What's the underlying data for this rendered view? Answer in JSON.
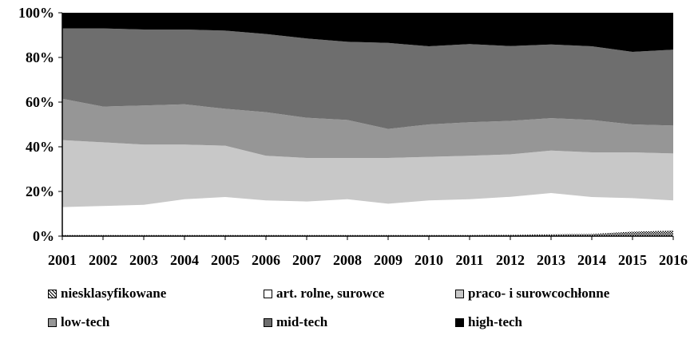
{
  "chart_data": {
    "type": "area",
    "stacked": true,
    "percent": true,
    "title": "",
    "xlabel": "",
    "ylabel": "",
    "ylim": [
      0,
      100
    ],
    "y_tick_labels": [
      "0%",
      "20%",
      "40%",
      "60%",
      "80%",
      "100%"
    ],
    "x": [
      "2001",
      "2002",
      "2003",
      "2004",
      "2005",
      "2006",
      "2007",
      "2008",
      "2009",
      "2010",
      "2011",
      "2012",
      "2013",
      "2014",
      "2015",
      "2016"
    ],
    "grid": false,
    "legend_position": "bottom",
    "series": [
      {
        "name": "niesklasyfikowane",
        "color": "#ffffff",
        "pattern": "checker",
        "values": [
          0.5,
          0.5,
          0.5,
          0.5,
          0.5,
          0.5,
          0.5,
          0.5,
          0.5,
          0.5,
          0.5,
          0.6,
          0.8,
          1.0,
          2.0,
          2.5
        ]
      },
      {
        "name": "art. rolne, surowce",
        "color": "#ffffff",
        "values": [
          12.5,
          13.0,
          13.5,
          16.0,
          17.0,
          15.5,
          15.0,
          16.0,
          14.0,
          15.5,
          16.0,
          17.0,
          18.5,
          16.5,
          15.0,
          13.5
        ]
      },
      {
        "name": "praco- i surowcochłonne",
        "color": "#c8c8c8",
        "values": [
          30.0,
          28.5,
          27.0,
          24.5,
          23.0,
          20.0,
          19.5,
          18.5,
          20.5,
          19.5,
          19.5,
          19.0,
          19.0,
          20.0,
          20.5,
          21.0
        ]
      },
      {
        "name": "low-tech",
        "color": "#969696",
        "values": [
          18.5,
          16.0,
          17.5,
          18.0,
          16.5,
          19.5,
          18.0,
          17.0,
          13.0,
          14.5,
          15.0,
          15.0,
          14.5,
          14.5,
          12.5,
          12.5
        ]
      },
      {
        "name": "mid-tech",
        "color": "#6e6e6e",
        "values": [
          31.5,
          35.0,
          34.0,
          33.5,
          35.0,
          35.0,
          35.5,
          35.0,
          38.5,
          35.0,
          35.0,
          33.5,
          33.0,
          33.0,
          32.5,
          34.0
        ]
      },
      {
        "name": "high-tech",
        "color": "#000000",
        "values": [
          7.0,
          7.0,
          7.5,
          7.5,
          8.0,
          9.5,
          11.5,
          13.0,
          13.5,
          15.0,
          14.0,
          14.9,
          14.2,
          15.0,
          17.5,
          16.5
        ]
      }
    ]
  }
}
